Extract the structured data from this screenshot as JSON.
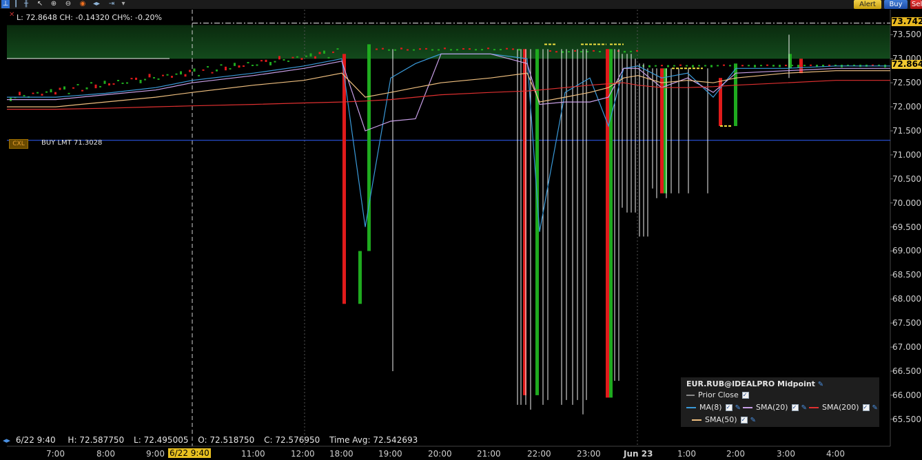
{
  "toolbar": {
    "icons": [
      "indicator-icon",
      "bar-chart-icon",
      "candle-icon",
      "cursor-icon",
      "zoom-in-icon",
      "zoom-out-icon",
      "crosshair-icon",
      "pan-icon",
      "scroll-icon",
      "dropdown-icon"
    ],
    "alert_label": "Alert",
    "buy_label": "Buy",
    "sell_label": "Sell"
  },
  "header": {
    "close_icon": "x-icon",
    "last_text": "L: 72.8648 CH: -0.14320 CH%: -0.20%"
  },
  "order": {
    "cancel_label": "CXL",
    "order_text": "BUY LMT 71.3028",
    "line_color": "#3060ff"
  },
  "price_tags": {
    "upper": "73.742",
    "last": "72.864"
  },
  "y_axis": {
    "ticks": [
      "73.500",
      "73.000",
      "72.500",
      "72.000",
      "71.500",
      "71.000",
      "70.500",
      "70.000",
      "69.500",
      "69.000",
      "68.500",
      "68.000",
      "67.500",
      "67.000",
      "66.500",
      "66.000",
      "65.500"
    ]
  },
  "x_axis": {
    "ticks": [
      "7:00",
      "8:00",
      "9:00",
      "11:00",
      "12:00",
      "18:00",
      "19:00",
      "20:00",
      "21:00",
      "22:00",
      "23:00",
      "Jun 23",
      "1:00",
      "2:00",
      "3:00",
      "4:00"
    ],
    "cursor_label": "6/22 9:40"
  },
  "status_bar": {
    "arrow_icon": "double-arrow-icon",
    "date": "6/22 9:40",
    "high": "H: 72.587750",
    "low": "L: 72.495005",
    "open": "O: 72.518750",
    "close": "C: 72.576950",
    "time_avg": "Time Avg: 72.542693"
  },
  "legend": {
    "title": "EUR.RUB@IDEALPRO Midpoint",
    "wrench_icon": "wrench-icon",
    "items": [
      {
        "label": "Prior Close",
        "color": "#888888",
        "style": "dashed"
      },
      {
        "label": "MA(8)",
        "color": "#3a9ad9"
      },
      {
        "label": "SMA(20)",
        "color": "#c9a0e8"
      },
      {
        "label": "SMA(200)",
        "color": "#e03030"
      },
      {
        "label": "SMA(50)",
        "color": "#f0c080"
      }
    ]
  },
  "colors": {
    "up": "#1faa1f",
    "down": "#e01b1b",
    "wick": "#ffffff",
    "highlight_band": "#0b3a12"
  },
  "chart_data": {
    "type": "candlestick",
    "symbol": "EUR.RUB@IDEALPRO Midpoint",
    "ylim": [
      65.2,
      73.8
    ],
    "x": [
      "7:00",
      "8:00",
      "9:00",
      "9:40",
      "11:00",
      "12:00",
      "18:00",
      "18:30",
      "19:00",
      "19:30",
      "20:00",
      "21:00",
      "21:45",
      "22:00",
      "22:30",
      "23:00",
      "23:20",
      "23:40",
      "Jun 23",
      "0:30",
      "1:00",
      "1:30",
      "2:00",
      "3:00",
      "4:00"
    ],
    "series": [
      {
        "name": "Close",
        "values": [
          72.25,
          72.3,
          72.45,
          72.58,
          72.75,
          72.9,
          73.2,
          67.9,
          73.3,
          73.2,
          73.1,
          73.2,
          73.1,
          66.0,
          73.2,
          73.2,
          65.9,
          73.2,
          72.8,
          70.2,
          72.7,
          72.7,
          72.9,
          72.8,
          72.85
        ]
      },
      {
        "name": "MA(8)",
        "values": [
          72.2,
          72.28,
          72.4,
          72.55,
          72.7,
          72.85,
          73.0,
          69.5,
          72.6,
          72.9,
          73.1,
          73.1,
          73.0,
          69.4,
          72.3,
          72.6,
          71.6,
          72.8,
          72.85,
          72.6,
          72.7,
          72.2,
          72.8,
          72.8,
          72.85
        ]
      },
      {
        "name": "SMA(20)",
        "values": [
          72.15,
          72.25,
          72.35,
          72.5,
          72.65,
          72.8,
          72.95,
          71.5,
          71.7,
          71.75,
          73.1,
          73.1,
          72.9,
          72.05,
          72.1,
          72.1,
          72.2,
          72.8,
          72.8,
          72.4,
          72.6,
          72.3,
          72.7,
          72.75,
          72.8
        ]
      },
      {
        "name": "SMA(50)",
        "values": [
          72.0,
          72.1,
          72.2,
          72.3,
          72.45,
          72.55,
          72.7,
          72.2,
          72.3,
          72.4,
          72.5,
          72.6,
          72.7,
          72.1,
          72.2,
          72.3,
          72.4,
          72.6,
          72.65,
          72.5,
          72.55,
          72.5,
          72.6,
          72.7,
          72.75
        ]
      },
      {
        "name": "SMA(200)",
        "values": [
          71.95,
          71.97,
          72.0,
          72.02,
          72.05,
          72.08,
          72.1,
          72.12,
          72.15,
          72.2,
          72.25,
          72.3,
          72.33,
          72.35,
          72.4,
          72.45,
          72.48,
          72.5,
          72.45,
          72.4,
          72.4,
          72.42,
          72.45,
          72.5,
          72.55
        ]
      }
    ],
    "reference_lines": [
      {
        "label": "BUY LMT 71.3028",
        "value": 71.3028
      },
      {
        "label": "73.742",
        "value": 73.742
      }
    ],
    "grid": true
  }
}
